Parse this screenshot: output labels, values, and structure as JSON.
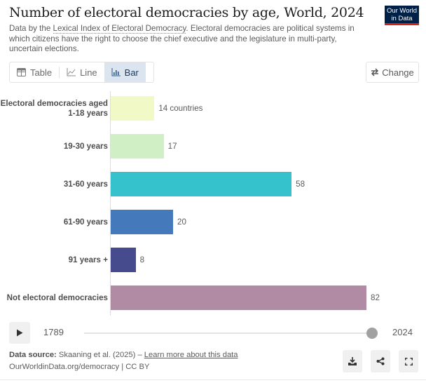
{
  "header": {
    "title": "Number of electoral democracies by age, World, 2024",
    "subtitle_prefix": "Data by the ",
    "subtitle_link": "Lexical Index of Electoral Democracy",
    "subtitle_suffix": ". Electoral democracies are political systems in which citizens have the right to choose the chief executive and the legislature in multi-party, uncertain elections.",
    "logo_line1": "Our World",
    "logo_line2": "in Data"
  },
  "tabs": [
    {
      "label": "Table",
      "icon": "table-icon",
      "active": false
    },
    {
      "label": "Line",
      "icon": "line-chart-icon",
      "active": false
    },
    {
      "label": "Bar",
      "icon": "bar-chart-icon",
      "active": true
    }
  ],
  "change_button": {
    "label": "Change",
    "icon": "swap-arrows-icon"
  },
  "chart_data": {
    "type": "bar",
    "orientation": "horizontal",
    "title": "Number of electoral democracies by age, World, 2024",
    "categories": [
      "Electoral democracies aged 1-18 years",
      "19-30 years",
      "31-60 years",
      "61-90 years",
      "91 years +",
      "Not electoral democracies"
    ],
    "category_label_lines": [
      [
        "Electoral democracies aged",
        "1-18 years"
      ],
      [
        "19-30 years"
      ],
      [
        "31-60 years"
      ],
      [
        "61-90 years"
      ],
      [
        "91 years +"
      ],
      [
        "Not electoral democracies"
      ]
    ],
    "values": [
      14,
      17,
      58,
      20,
      8,
      82
    ],
    "value_labels": [
      "14 countries",
      "17",
      "58",
      "20",
      "8",
      "82"
    ],
    "colors": [
      "#f1f9c7",
      "#d0efc4",
      "#36c2cc",
      "#4479bb",
      "#454b8d",
      "#b08ba3"
    ],
    "unit": "countries",
    "xlim": [
      0,
      82
    ],
    "grid": false,
    "legend": "none"
  },
  "timeline": {
    "start_year": "1789",
    "end_year": "2024",
    "selected_fraction": 1.0,
    "play_icon": "play-icon"
  },
  "footer": {
    "source_label": "Data source:",
    "source_text": " Skaaning et al. (2025) – ",
    "learn_more": "Learn more about this data",
    "license": "OurWorldinData.org/democracy | CC BY",
    "buttons": [
      {
        "name": "download-button",
        "icon": "download-icon"
      },
      {
        "name": "share-button",
        "icon": "share-icon"
      },
      {
        "name": "fullscreen-button",
        "icon": "fullscreen-icon"
      }
    ]
  }
}
